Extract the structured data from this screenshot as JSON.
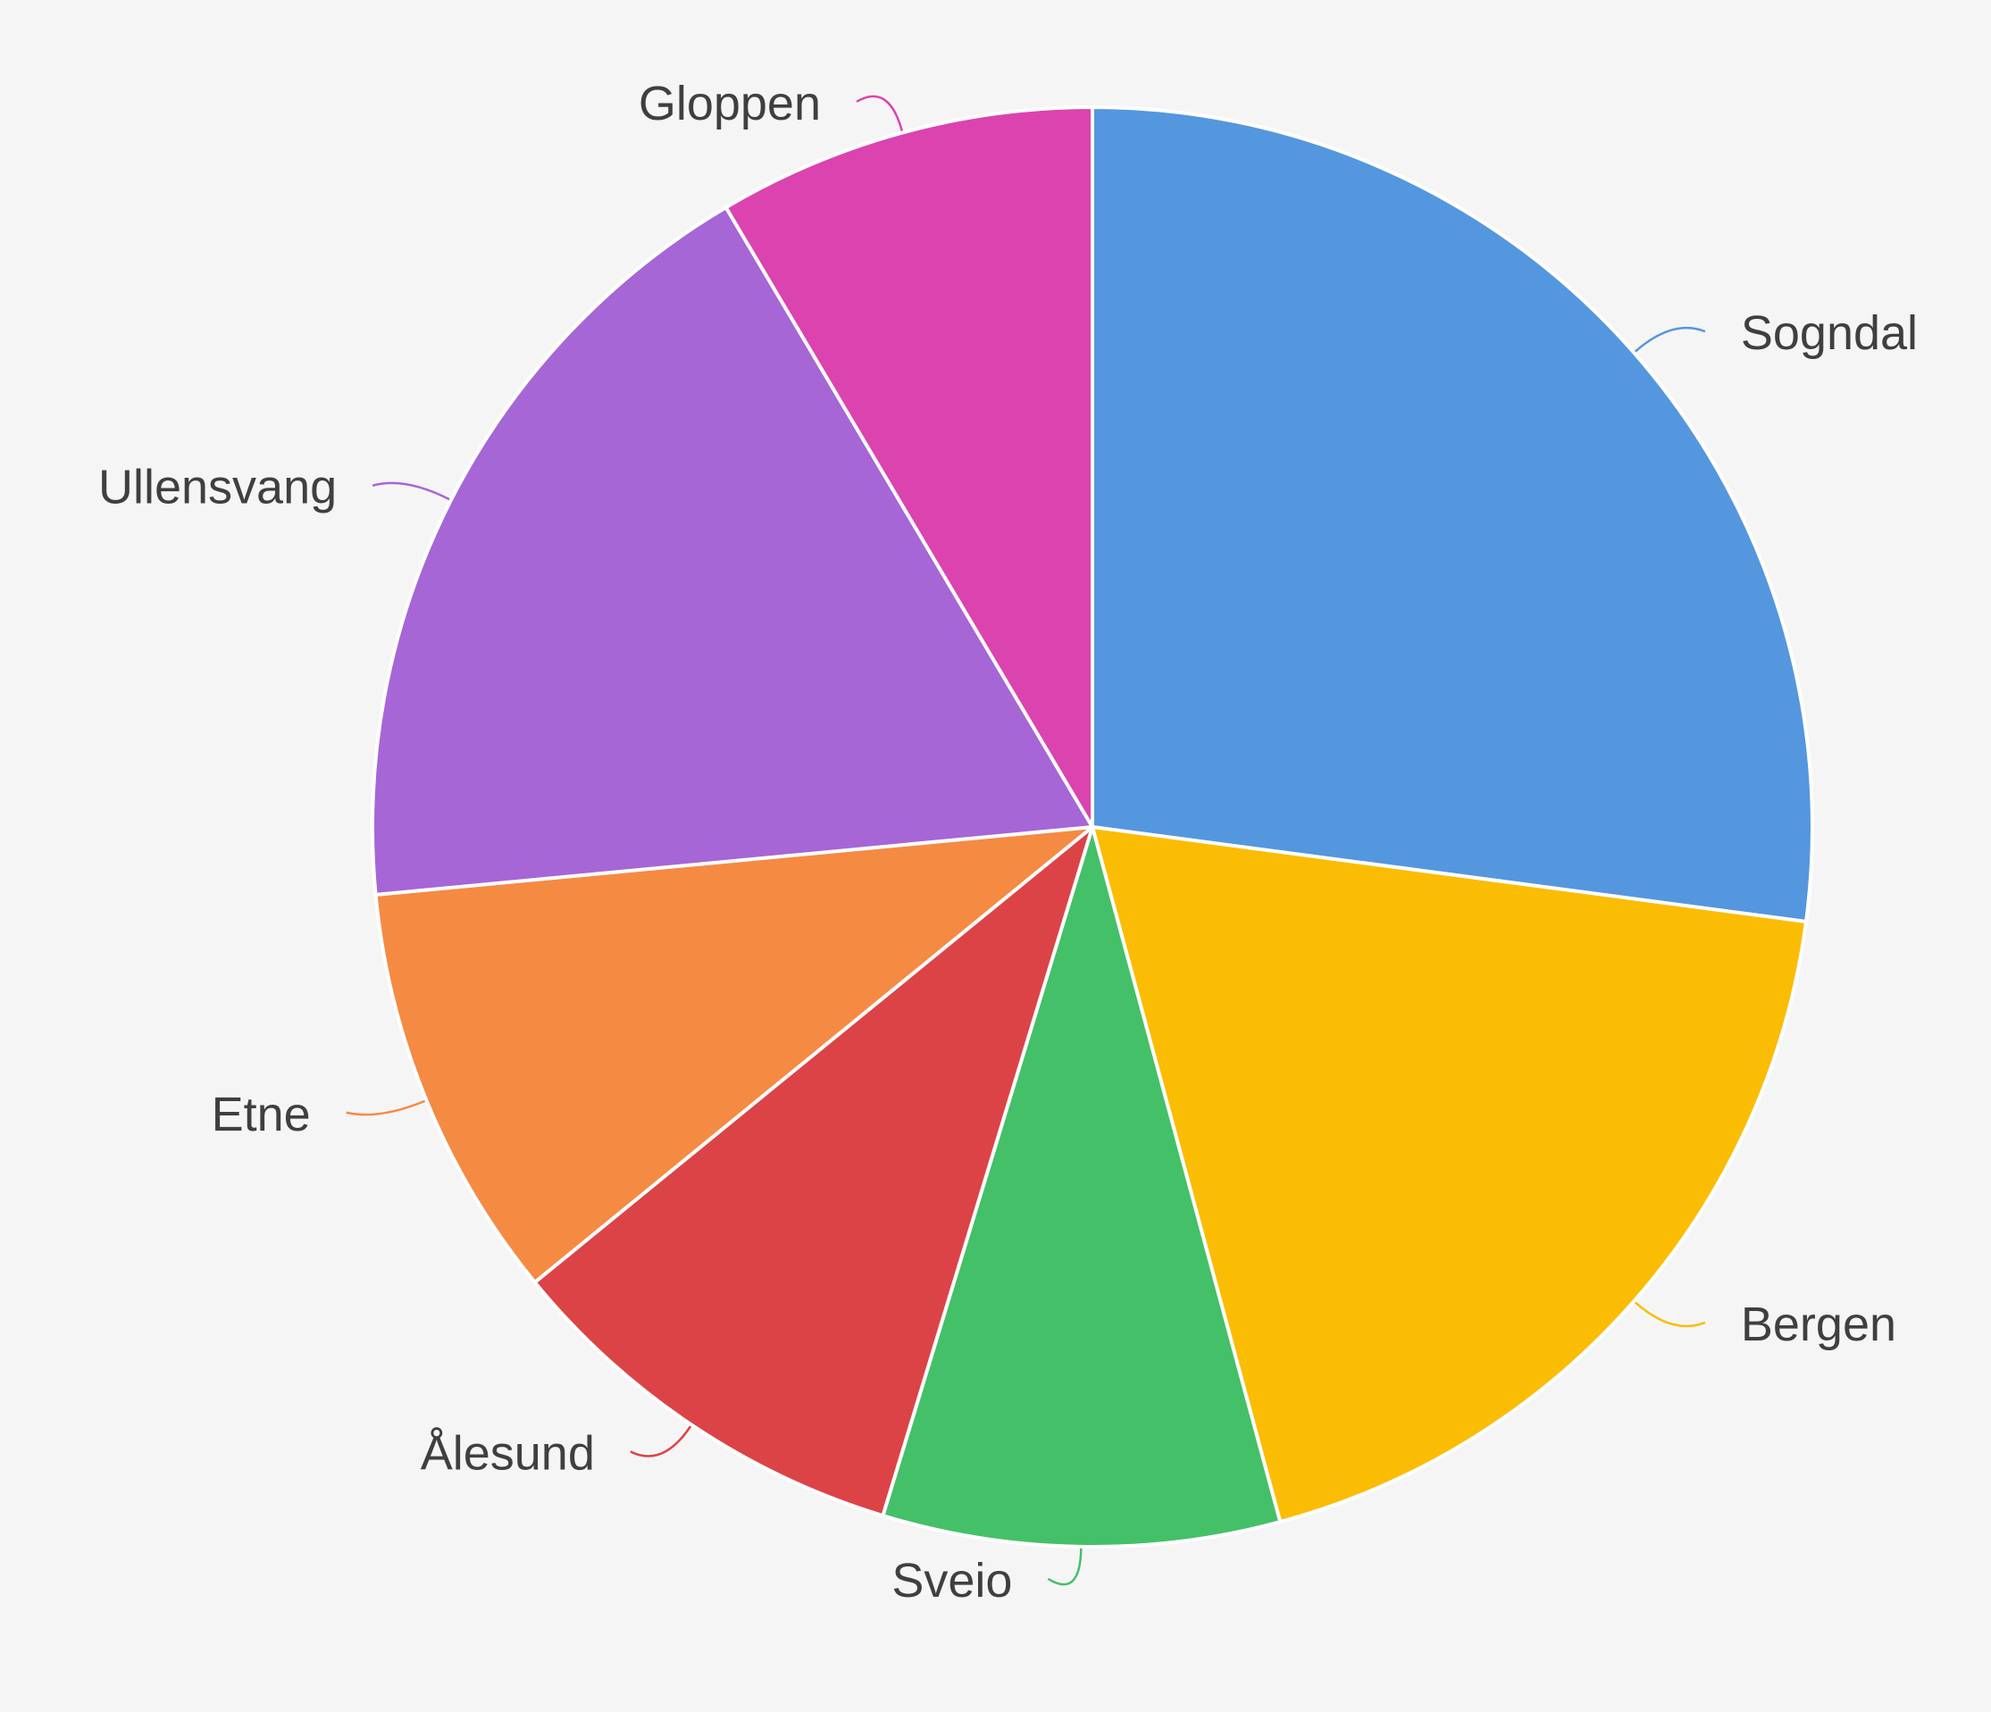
{
  "chart_data": {
    "type": "pie",
    "title": "",
    "start": "12 o'clock",
    "direction": "clockwise",
    "slices": [
      {
        "label": "Sogndal",
        "value": 27.1,
        "color": "#5497de"
      },
      {
        "label": "Bergen",
        "value": 18.7,
        "color": "#fbbc04"
      },
      {
        "label": "Sveio",
        "value": 8.9,
        "color": "#44c068"
      },
      {
        "label": "Ålesund",
        "value": 9.4,
        "color": "#dc4347"
      },
      {
        "label": "Etne",
        "value": 9.4,
        "color": "#f58a43"
      },
      {
        "label": "Ullensvang",
        "value": 18.0,
        "color": "#a666d6"
      },
      {
        "label": "Gloppen",
        "value": 8.5,
        "color": "#db43af"
      }
    ]
  }
}
